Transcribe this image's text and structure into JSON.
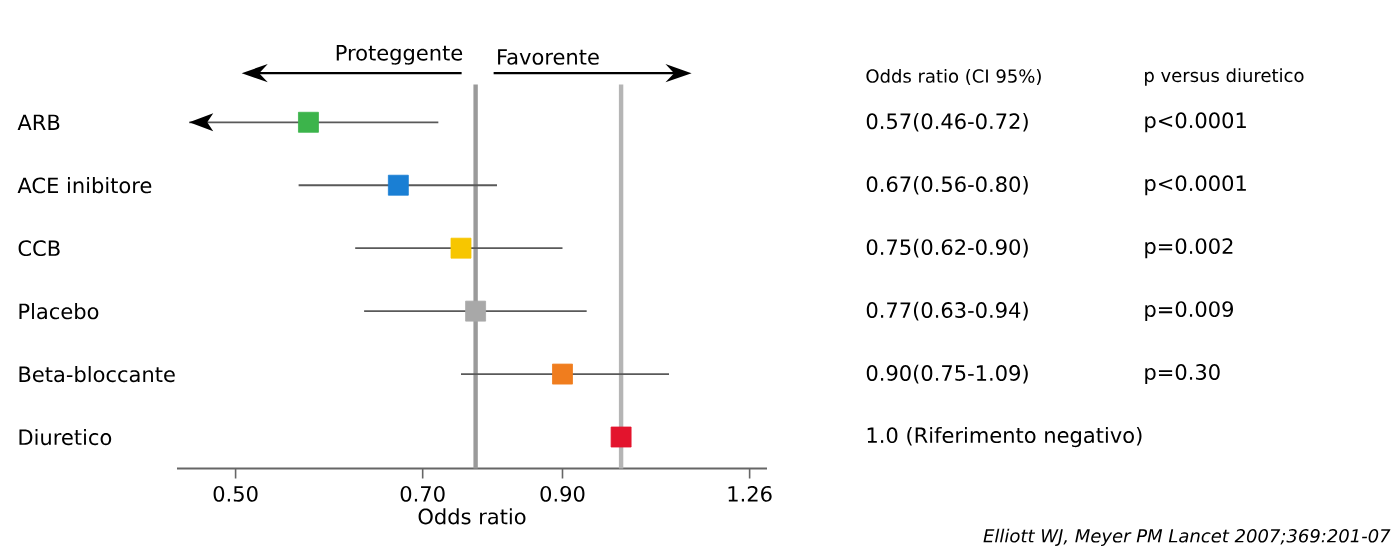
{
  "chart_data": {
    "type": "scatter",
    "orientation": "horizontal",
    "log": "x",
    "marker": "square",
    "categories": [
      "ARB",
      "ACE inibitore",
      "CCB",
      "Placebo",
      "Beta-bloccante",
      "Diuretico"
    ],
    "values": [
      0.57,
      0.67,
      0.75,
      0.77,
      0.9,
      1.0
    ],
    "errors": [
      [
        0.46,
        0.72
      ],
      [
        0.56,
        0.8
      ],
      [
        0.62,
        0.9
      ],
      [
        0.63,
        0.94
      ],
      [
        0.75,
        1.09
      ],
      null
    ],
    "colors": [
      "#3cb44b",
      "#1a7fd4",
      "#f7c600",
      "#a8a8a8",
      "#f07d1e",
      "#e3142d"
    ],
    "xlabel": "Odds ratio",
    "xlim": [
      0.45,
      1.3
    ],
    "xticks": [
      {
        "value": 0.5,
        "label": "0.50"
      },
      {
        "value": 0.7,
        "label": "0.70"
      },
      {
        "value": 0.9,
        "label": "0.90"
      },
      1.26
    ],
    "ref_lines": [
      {
        "axis": "x",
        "value": 0.77,
        "color": "#9a9a9a"
      },
      {
        "axis": "x",
        "value": 1.0,
        "color": "#b5b5b5"
      }
    ],
    "annotations": [
      "Proteggente",
      "Favorente",
      "Odds ratio (CI 95%)",
      "p versus diuretico",
      "0.57(0.46-0.72)",
      "0.67(0.56-0.80)",
      "0.75(0.62-0.90)",
      "0.77(0.63-0.94)",
      "0.90(0.75-1.09)",
      "1.0 (Riferimento negativo)",
      "p<0.0001",
      "p<0.0001",
      "p=0.002",
      "p=0.009",
      "p=0.30",
      "Elliott WJ, Meyer PM Lancet 2007;369:201-07"
    ]
  }
}
